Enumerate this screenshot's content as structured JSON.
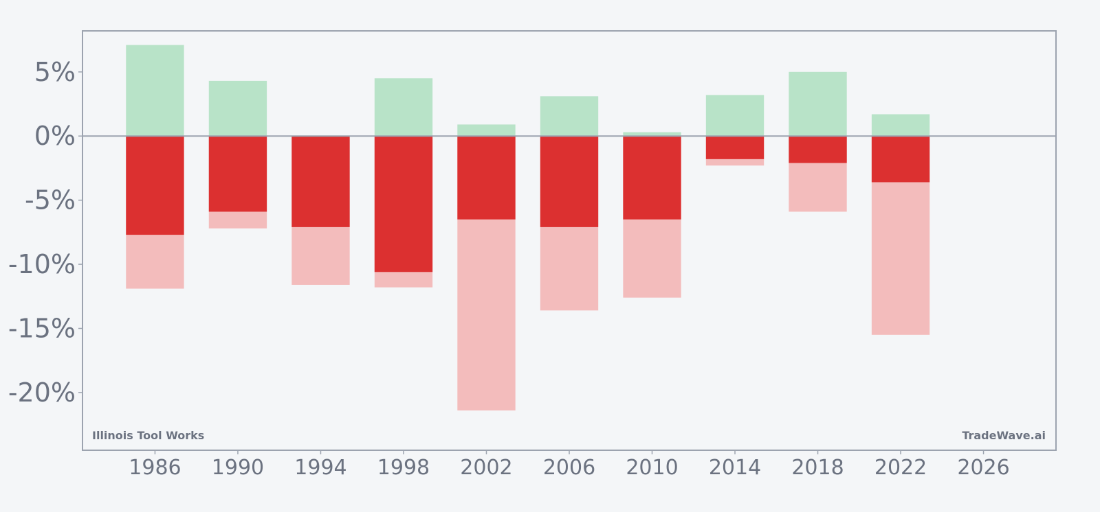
{
  "chart_data": {
    "type": "bar",
    "x_label_ticks": [
      "1986",
      "1990",
      "1994",
      "1998",
      "2002",
      "2006",
      "2010",
      "2014",
      "2018",
      "2022",
      "2026"
    ],
    "x_tick_values": [
      1986,
      1990,
      1994,
      1998,
      2002,
      2006,
      2010,
      2014,
      2018,
      2022,
      2026
    ],
    "xlim": [
      1982.5,
      2029.5
    ],
    "ylim": [
      -24.5,
      8.2
    ],
    "y_ticks": [
      5,
      0,
      -5,
      -10,
      -15,
      -20
    ],
    "y_tick_labels": [
      "5%",
      "0%",
      "-5%",
      "-10%",
      "-15%",
      "-20%"
    ],
    "bar_width_years": 2.8,
    "series": [
      {
        "role": "gain",
        "x": [
          1986,
          1990,
          1998,
          2002,
          2006,
          2010,
          2014,
          2018,
          2022
        ],
        "values": [
          7.1,
          4.3,
          4.5,
          0.9,
          3.1,
          0.3,
          3.2,
          5.0,
          1.7
        ]
      },
      {
        "role": "outer-loss",
        "x": [
          1986,
          1990,
          1994,
          1998,
          2002,
          2006,
          2010,
          2014,
          2018,
          2022
        ],
        "values": [
          -11.9,
          -7.2,
          -11.6,
          -11.8,
          -21.4,
          -13.6,
          -12.6,
          -2.3,
          -5.9,
          -15.5
        ]
      },
      {
        "role": "inner-loss",
        "x": [
          1986,
          1990,
          1994,
          1998,
          2002,
          2006,
          2010,
          2014,
          2018,
          2022
        ],
        "values": [
          -7.7,
          -5.9,
          -7.1,
          -10.6,
          -6.5,
          -7.1,
          -6.5,
          -1.8,
          -2.1,
          -3.6
        ]
      }
    ],
    "colors": {
      "gain": "#b8e3c8",
      "outer_loss": "#f3bcbc",
      "inner_loss": "#dc3030",
      "axis": "#9ca3af",
      "zero_line": "#9ca3af",
      "text": "#6b7280"
    },
    "grid": false,
    "legend": "none"
  },
  "watermarks": {
    "left": "Illinois Tool Works",
    "right": "TradeWave.ai"
  }
}
